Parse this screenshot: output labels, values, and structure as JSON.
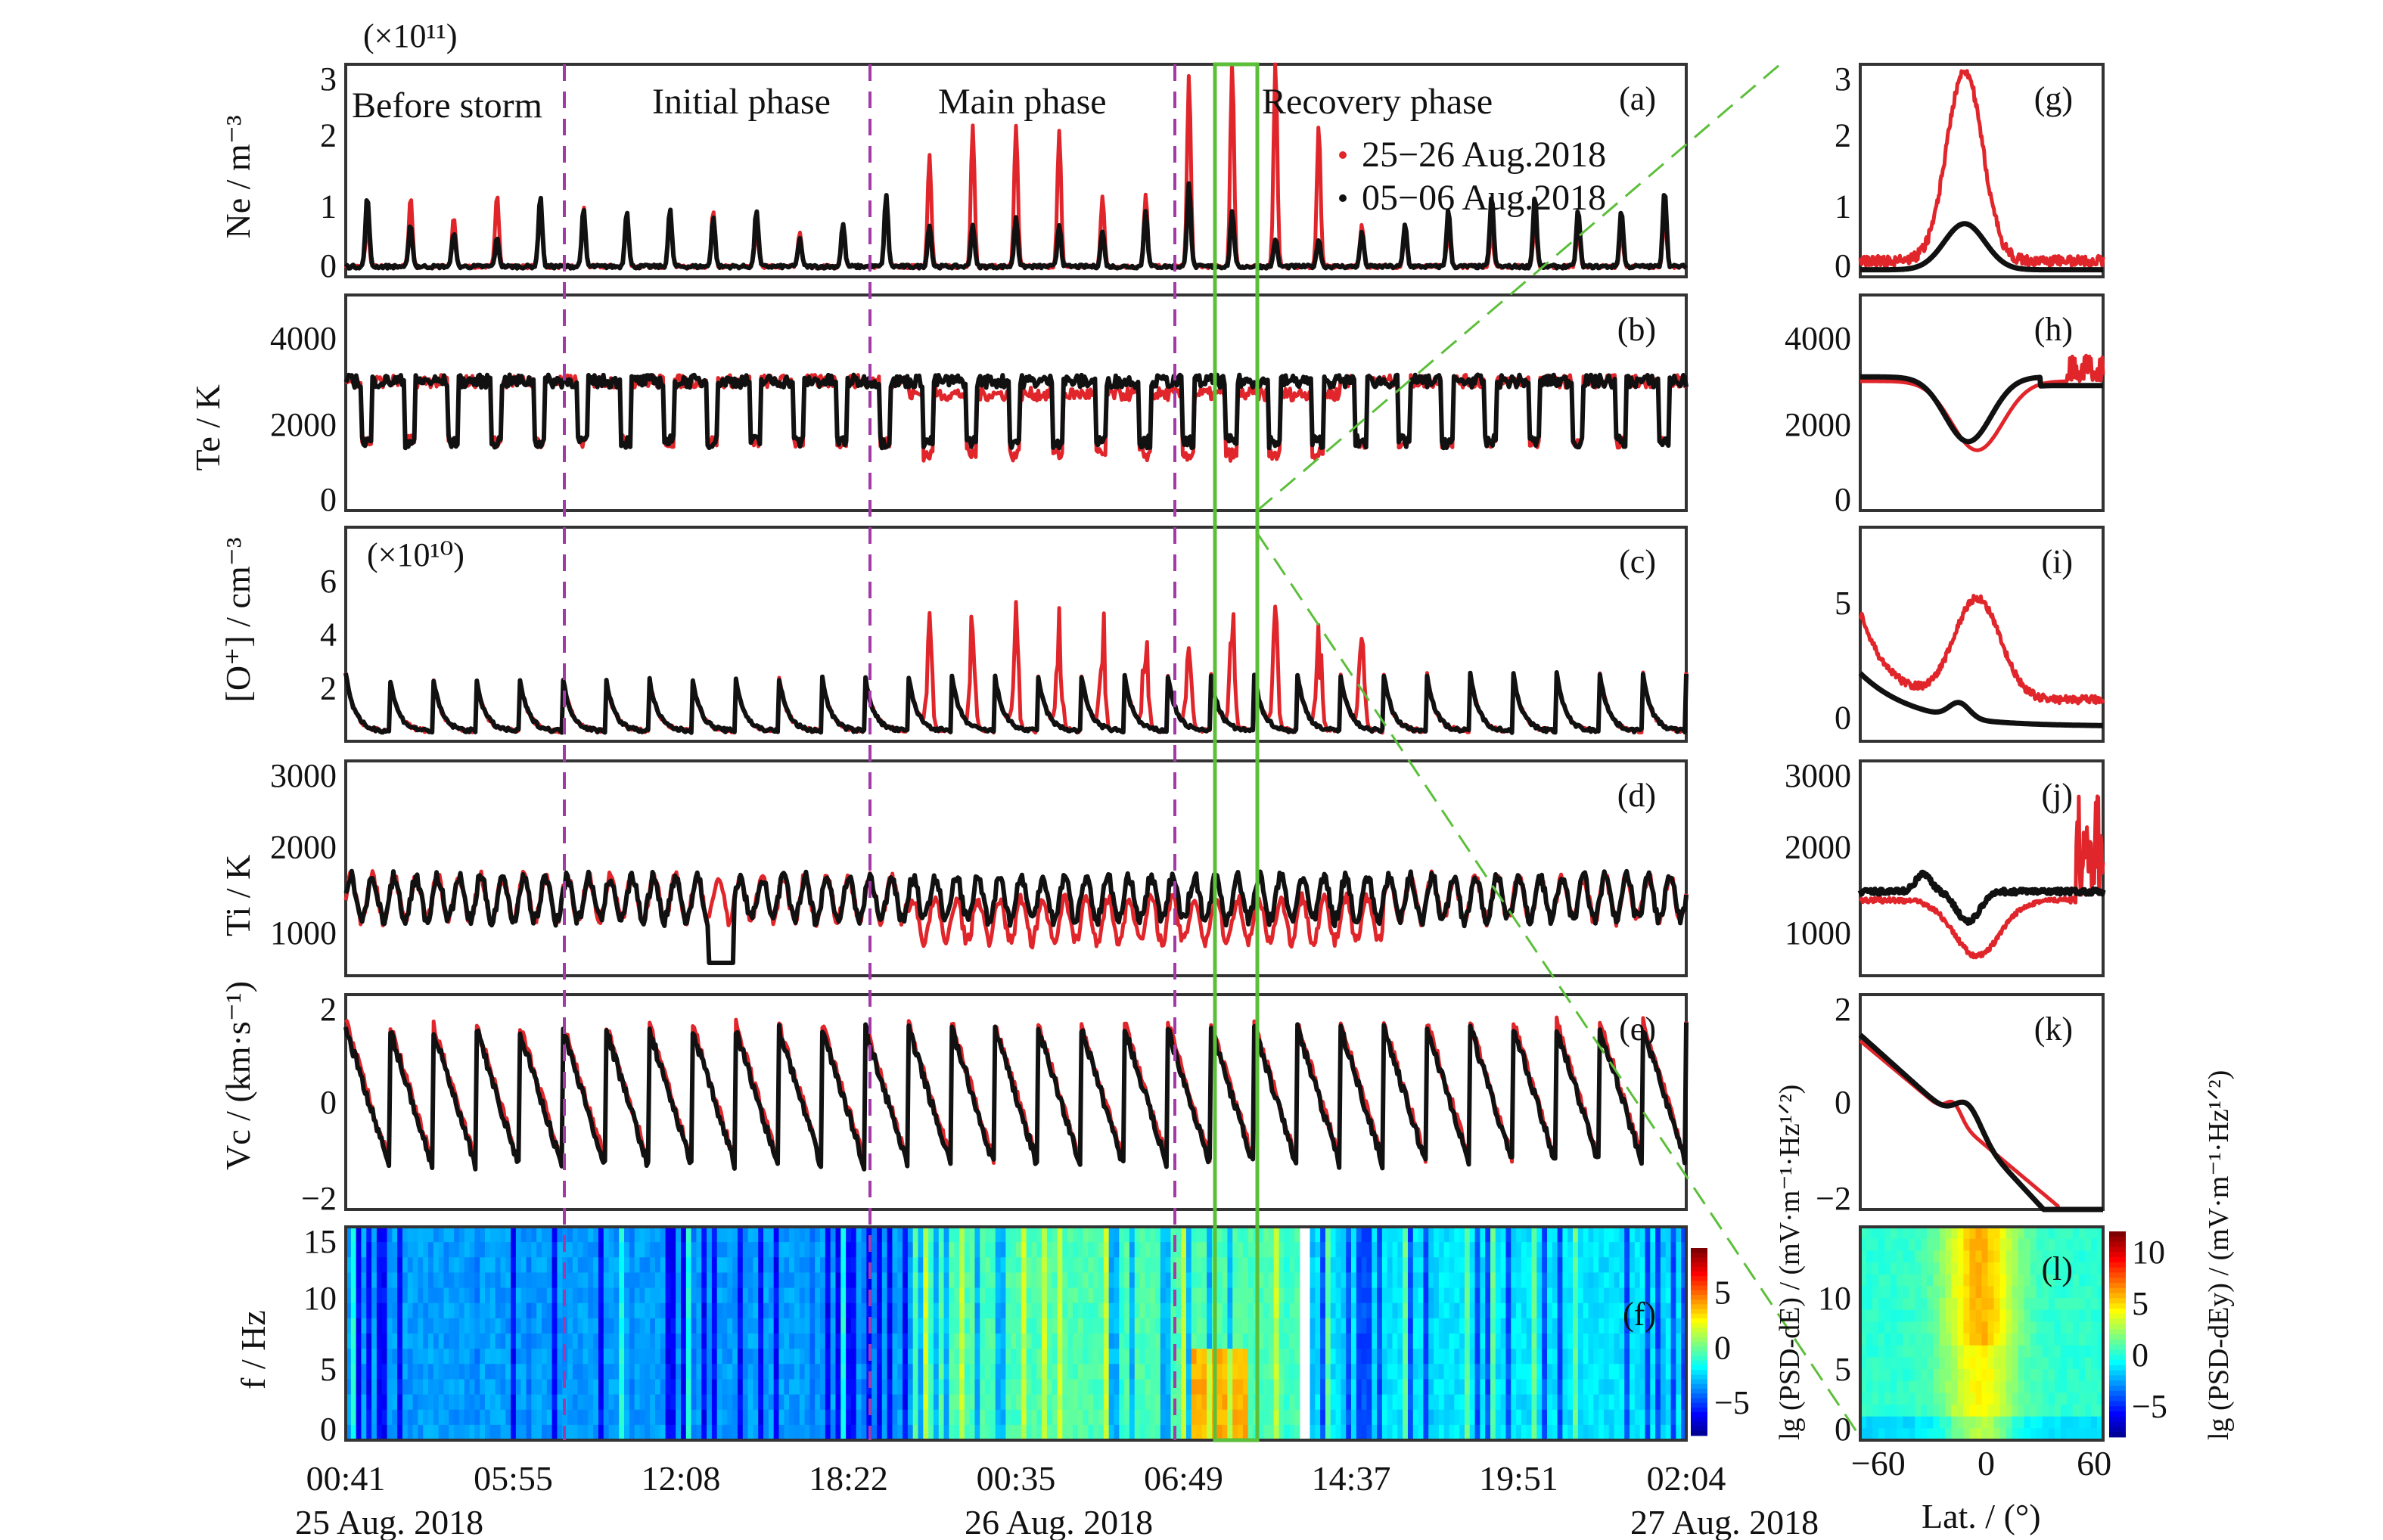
{
  "colors": {
    "storm": "#e0262b",
    "quiet": "#111111",
    "phase_lines": "#a33aa8",
    "highlight": "#5cbf3a"
  },
  "phases": [
    "Before storm",
    "Initial phase",
    "Main phase",
    "Recovery phase"
  ],
  "legend": [
    "25−26 Aug.2018",
    "05−06 Aug.2018"
  ],
  "time_axis": {
    "ticks": [
      "00:41",
      "05:55",
      "12:08",
      "18:22",
      "00:35",
      "06:49",
      "14:37",
      "19:51",
      "02:04"
    ],
    "dates": [
      "25 Aug. 2018",
      "26 Aug. 2018",
      "27 Aug. 2018"
    ]
  },
  "lat_axis": {
    "label": "Lat. / (°)",
    "ticks": [
      "−60",
      "0",
      "60"
    ],
    "range": [
      -70,
      65
    ]
  },
  "chart_data": [
    {
      "type": "line",
      "panel": "(a)",
      "ylabel": "Ne / m⁻³",
      "multiplier": "(×10¹¹)",
      "ylim": [
        0,
        3
      ],
      "yticks": [
        "0",
        "1",
        "2",
        "3"
      ],
      "series": [
        {
          "name": "25−26 Aug.2018",
          "orbit_peaks": [
            0.6,
            1.0,
            0.7,
            1.05,
            0.9,
            0.85,
            0.8,
            0.8,
            0.8,
            0.5,
            0.5,
            0.5,
            1.0,
            1.6,
            2.0,
            2.0,
            1.9,
            1.0,
            1.0,
            2.7,
            2.9,
            2.9,
            2.0,
            0.6,
            0.5,
            0.5,
            0.5,
            0.6,
            0.5,
            0.5,
            0.7
          ]
        },
        {
          "name": "05−06 Aug.2018",
          "orbit_peaks": [
            1.0,
            0.6,
            0.5,
            0.4,
            1.0,
            0.8,
            0.8,
            0.8,
            0.7,
            0.8,
            0.4,
            0.6,
            1.0,
            0.6,
            0.6,
            0.7,
            0.6,
            0.5,
            0.8,
            1.2,
            0.8,
            0.4,
            0.4,
            0.5,
            0.6,
            0.8,
            1.0,
            1.0,
            0.8,
            0.8,
            1.1
          ]
        }
      ]
    },
    {
      "type": "line",
      "panel": "(b)",
      "ylabel": "Te / K",
      "ylim": [
        0,
        5000
      ],
      "yticks": [
        "0",
        "2000",
        "4000"
      ],
      "range_typical": [
        1500,
        3200
      ]
    },
    {
      "type": "line",
      "panel": "(c)",
      "ylabel": "[O⁺] / cm⁻³",
      "multiplier": "(×10¹⁰)",
      "ylim": [
        0,
        8
      ],
      "yticks": [
        "2",
        "4",
        "6"
      ],
      "range_typical": [
        0.2,
        2.5
      ]
    },
    {
      "type": "line",
      "panel": "(d)",
      "ylabel": "Ti / K",
      "ylim": [
        500,
        3000
      ],
      "yticks": [
        "1000",
        "2000",
        "3000"
      ],
      "range_typical": [
        1000,
        1700
      ]
    },
    {
      "type": "line",
      "panel": "(e)",
      "ylabel": "Vc / (km·s⁻¹)",
      "ylim": [
        -2,
        2
      ],
      "yticks": [
        "−2",
        "0",
        "2"
      ],
      "range_typical": [
        -1.5,
        1.5
      ]
    },
    {
      "type": "heatmap",
      "panel": "(f)",
      "ylabel": "f / Hz",
      "ylim": [
        0,
        15
      ],
      "yticks": [
        "0",
        "5",
        "10",
        "15"
      ],
      "colorbar": {
        "label": "lg (PSD-dE) / (mV·m⁻¹·Hz¹ᐟ²)",
        "ticks": [
          "−5",
          "0",
          "5"
        ],
        "range": [
          -8,
          9
        ]
      }
    },
    {
      "type": "line",
      "panel": "(g)",
      "ylim": [
        0,
        3
      ],
      "yticks": [
        "0",
        "1",
        "2",
        "3"
      ],
      "storm_peak": 2.85,
      "quiet_peak": 0.75
    },
    {
      "type": "line",
      "panel": "(h)",
      "ylim": [
        0,
        5000
      ],
      "yticks": [
        "0",
        "2000",
        "4000"
      ]
    },
    {
      "type": "line",
      "panel": "(i)",
      "ylim": [
        -0.5,
        8
      ],
      "yticks": [
        "0",
        "5"
      ]
    },
    {
      "type": "line",
      "panel": "(j)",
      "ylim": [
        500,
        3000
      ],
      "yticks": [
        "1000",
        "2000",
        "3000"
      ]
    },
    {
      "type": "line",
      "panel": "(k)",
      "ylim": [
        -2,
        2
      ],
      "yticks": [
        "−2",
        "0",
        "2"
      ]
    },
    {
      "type": "heatmap",
      "panel": "(l)",
      "ylim": [
        0,
        15
      ],
      "yticks": [
        "0",
        "5",
        "10"
      ],
      "colorbar": {
        "label": "lg (PSD-dEy) / (mV·m⁻¹·Hz¹ᐟ²)",
        "ticks": [
          "−5",
          "0",
          "5",
          "10"
        ],
        "range": [
          -8,
          12
        ]
      }
    }
  ]
}
